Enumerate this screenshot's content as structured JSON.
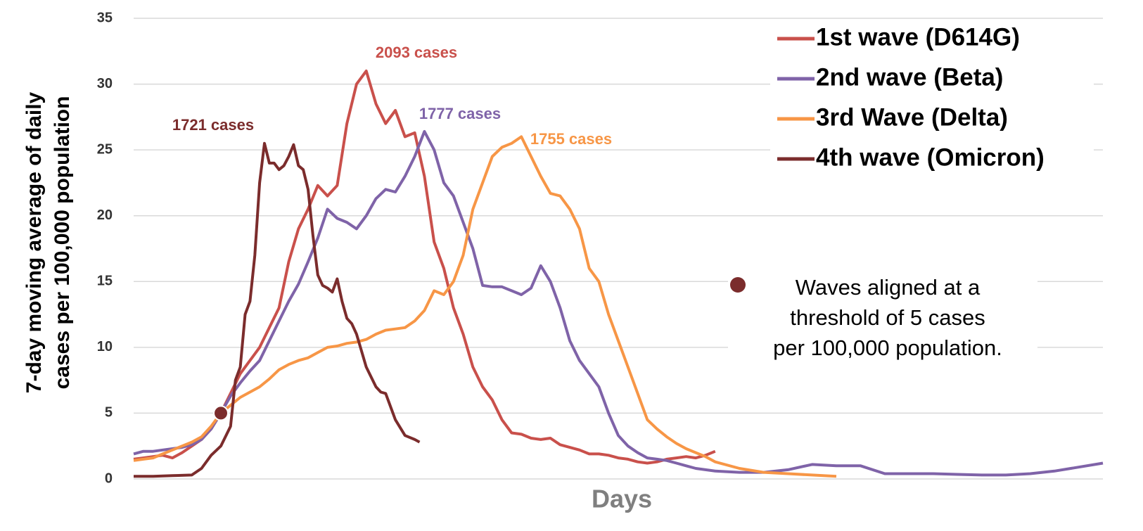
{
  "chart_data": {
    "type": "line",
    "x_label": "Days",
    "y_label": [
      "7-day moving  average of daily",
      "cases per 100,000 population"
    ],
    "ylim": [
      0,
      35
    ],
    "yticks": [
      0,
      5,
      10,
      15,
      20,
      25,
      30,
      35
    ],
    "xlim": [
      0,
      200
    ],
    "grid": true,
    "legend": "upper right",
    "series": [
      {
        "name": "1st wave (D614G)",
        "color": "#c9504b",
        "x": [
          0,
          2,
          4,
          6,
          8,
          10,
          12,
          14,
          16,
          18,
          20,
          22,
          24,
          26,
          28,
          30,
          32,
          34,
          36,
          38,
          40,
          42,
          44,
          46,
          48,
          50,
          52,
          54,
          56,
          58,
          60,
          62,
          64,
          66,
          68,
          70,
          72,
          74,
          76,
          78,
          80,
          82,
          84,
          86,
          88,
          90,
          92,
          94,
          96,
          98,
          100,
          102,
          104,
          106,
          108,
          110,
          112,
          114,
          116,
          118,
          120
        ],
        "values": [
          1.5,
          1.6,
          1.7,
          1.8,
          1.6,
          2.0,
          2.5,
          3.0,
          3.8,
          5.0,
          6.5,
          8.0,
          9.0,
          10.0,
          11.5,
          13.0,
          16.5,
          19.0,
          20.5,
          22.3,
          21.5,
          22.3,
          27.0,
          30.0,
          31.0,
          28.5,
          27.0,
          28.0,
          26.0,
          26.3,
          23.0,
          18.0,
          16.0,
          13.0,
          11.0,
          8.5,
          7.0,
          6.0,
          4.5,
          3.5,
          3.4,
          3.1,
          3.0,
          3.1,
          2.6,
          2.4,
          2.2,
          1.9,
          1.9,
          1.8,
          1.6,
          1.5,
          1.3,
          1.2,
          1.3,
          1.5,
          1.6,
          1.7,
          1.6,
          1.8,
          2.1
        ]
      },
      {
        "name": "2nd wave (Beta)",
        "color": "#7f63a8",
        "x": [
          0,
          2,
          4,
          6,
          8,
          10,
          12,
          14,
          16,
          18,
          20,
          22,
          24,
          26,
          28,
          30,
          32,
          34,
          36,
          38,
          40,
          42,
          44,
          46,
          48,
          50,
          52,
          54,
          56,
          58,
          60,
          62,
          64,
          66,
          68,
          70,
          72,
          74,
          76,
          78,
          80,
          82,
          84,
          86,
          88,
          90,
          92,
          94,
          96,
          98,
          100,
          102,
          104,
          106,
          108,
          110,
          112,
          114,
          116,
          118,
          120,
          125,
          130,
          135,
          140,
          145,
          150,
          155,
          160,
          165,
          170,
          175,
          180,
          185,
          190,
          195,
          200
        ],
        "values": [
          1.9,
          2.1,
          2.1,
          2.2,
          2.3,
          2.4,
          2.6,
          3.0,
          3.8,
          5.0,
          6.3,
          7.3,
          8.2,
          9.0,
          10.5,
          12.0,
          13.5,
          14.8,
          16.5,
          18.3,
          20.5,
          19.8,
          19.5,
          19.0,
          20.0,
          21.3,
          22.0,
          21.8,
          23.0,
          24.5,
          26.4,
          25.0,
          22.5,
          21.5,
          19.5,
          17.5,
          14.7,
          14.6,
          14.6,
          14.3,
          14.0,
          14.5,
          16.2,
          15.0,
          13.0,
          10.5,
          9.0,
          8.0,
          7.0,
          5.0,
          3.3,
          2.5,
          2.0,
          1.6,
          1.5,
          1.4,
          1.2,
          1.0,
          0.8,
          0.7,
          0.6,
          0.5,
          0.5,
          0.7,
          1.1,
          1.0,
          1.0,
          0.4,
          0.4,
          0.4,
          0.35,
          0.3,
          0.3,
          0.4,
          0.6,
          0.9,
          1.2
        ]
      },
      {
        "name": "3rd Wave (Delta)",
        "color": "#f79646",
        "x": [
          0,
          2,
          4,
          6,
          8,
          10,
          12,
          14,
          16,
          18,
          20,
          22,
          24,
          26,
          28,
          30,
          32,
          34,
          36,
          38,
          40,
          42,
          44,
          46,
          48,
          50,
          52,
          54,
          56,
          58,
          60,
          62,
          64,
          66,
          68,
          70,
          72,
          74,
          76,
          78,
          80,
          82,
          84,
          86,
          88,
          90,
          92,
          94,
          96,
          98,
          100,
          102,
          104,
          106,
          108,
          110,
          112,
          114,
          116,
          118,
          120,
          125,
          130,
          135,
          140,
          145
        ],
        "values": [
          1.4,
          1.5,
          1.6,
          1.9,
          2.2,
          2.5,
          2.8,
          3.2,
          4.0,
          5.0,
          5.6,
          6.2,
          6.6,
          7.0,
          7.6,
          8.3,
          8.7,
          9.0,
          9.2,
          9.6,
          10.0,
          10.1,
          10.3,
          10.4,
          10.6,
          11.0,
          11.3,
          11.4,
          11.5,
          12.0,
          12.8,
          14.3,
          14.0,
          15.0,
          17.0,
          20.5,
          22.5,
          24.5,
          25.2,
          25.5,
          26.0,
          24.5,
          23.0,
          21.7,
          21.5,
          20.5,
          19.0,
          16.0,
          15.0,
          12.5,
          10.5,
          8.5,
          6.5,
          4.5,
          3.8,
          3.2,
          2.7,
          2.3,
          2.0,
          1.7,
          1.3,
          0.8,
          0.5,
          0.4,
          0.3,
          0.2
        ]
      },
      {
        "name": "4th wave (Omicron)",
        "color": "#7b2c2c",
        "x": [
          0,
          4,
          8,
          12,
          14,
          16,
          18,
          20,
          21,
          22,
          23,
          24,
          25,
          26,
          27,
          28,
          29,
          30,
          31,
          32,
          33,
          34,
          35,
          36,
          37,
          38,
          39,
          40,
          41,
          42,
          43,
          44,
          45,
          46,
          48,
          50,
          51,
          52,
          54,
          56,
          58,
          59
        ],
        "values": [
          0.2,
          0.2,
          0.25,
          0.3,
          0.8,
          1.8,
          2.5,
          4.0,
          7.5,
          8.5,
          12.5,
          13.5,
          17.0,
          22.5,
          25.5,
          24.0,
          24.0,
          23.5,
          23.8,
          24.5,
          25.4,
          23.8,
          23.5,
          22.0,
          18.5,
          15.5,
          14.7,
          14.5,
          14.2,
          15.2,
          13.5,
          12.2,
          11.8,
          11.0,
          8.5,
          7.0,
          6.6,
          6.5,
          4.5,
          3.3,
          3.0,
          2.8
        ]
      }
    ],
    "annotations": [
      "2093 cases",
      "1777 cases",
      "1755 cases",
      "1721 cases"
    ],
    "marker": {
      "x": 18,
      "y": 5,
      "color": "#7b2c2c"
    },
    "note": [
      "Waves aligned at a",
      "threshold of 5 cases",
      "per 100,000 population."
    ]
  }
}
